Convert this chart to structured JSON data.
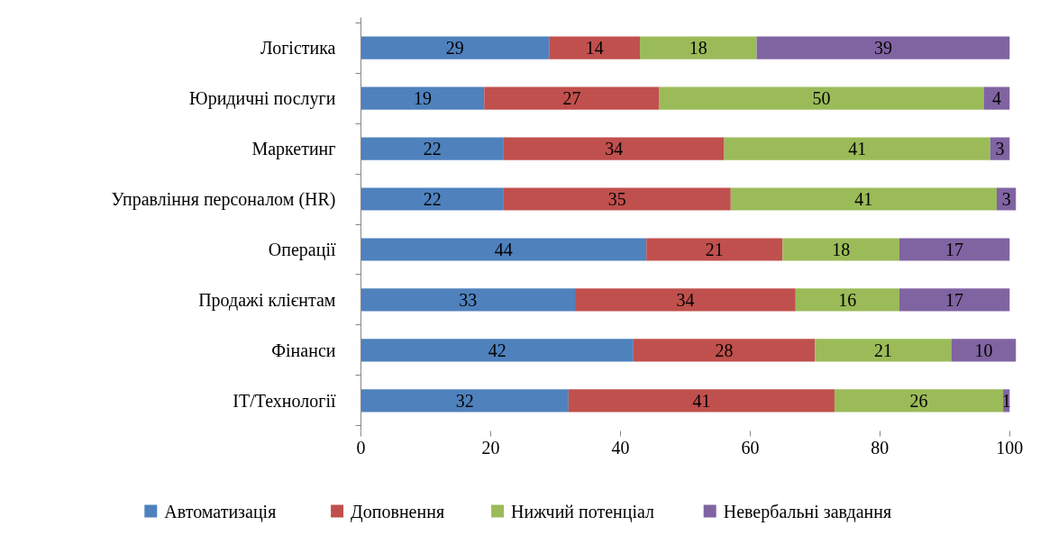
{
  "chart_data": {
    "type": "bar",
    "orientation": "horizontal",
    "stacked": true,
    "data_labels": true,
    "legend": "bottom",
    "grid": false,
    "categories": [
      "Логістика",
      "Юридичні послуги",
      "Маркетинг",
      "Управління персоналом (HR)",
      "Операції",
      "Продажі клієнтам",
      "Фінанси",
      "IT/Технології"
    ],
    "xlim": [
      0,
      101
    ],
    "xticks": [
      0,
      20,
      40,
      60,
      80,
      100
    ],
    "series": [
      {
        "name": "Автоматизація",
        "color": "#4f81bd",
        "values": [
          29,
          19,
          22,
          22,
          44,
          33,
          42,
          32
        ]
      },
      {
        "name": "Доповнення",
        "color": "#c0504d",
        "values": [
          14,
          27,
          34,
          35,
          21,
          34,
          28,
          41
        ]
      },
      {
        "name": "Нижчий потенціал",
        "color": "#9bbb59",
        "values": [
          18,
          50,
          41,
          41,
          18,
          16,
          21,
          26
        ]
      },
      {
        "name": "Невербальні завдання",
        "color": "#8064a2",
        "values": [
          39,
          4,
          3,
          3,
          17,
          17,
          10,
          1
        ]
      }
    ]
  }
}
